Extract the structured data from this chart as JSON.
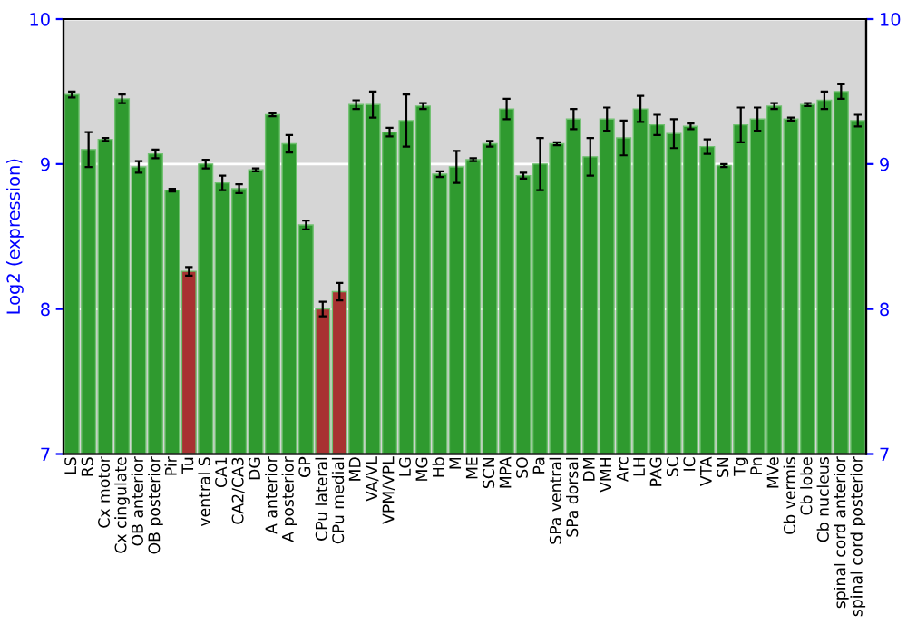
{
  "chart_data": {
    "type": "bar",
    "ylabel": "Log2 (expression)",
    "categories": [
      "LS",
      "RS",
      "Cx motor",
      "Cx cingulate",
      "OB anterior",
      "OB posterior",
      "Pir",
      "Tu",
      "ventral S",
      "CA1",
      "CA2/CA3",
      "DG",
      "A anterior",
      "A posterior",
      "GP",
      "CPu lateral",
      "CPu medial",
      "MD",
      "VA/VL",
      "VPM/VPL",
      "LG",
      "MG",
      "Hb",
      "M",
      "ME",
      "SCN",
      "MPA",
      "SO",
      "Pa",
      "SPa ventral",
      "SPa dorsal",
      "DM",
      "VMH",
      "Arc",
      "LH",
      "PAG",
      "SC",
      "IC",
      "VTA",
      "SN",
      "Tg",
      "Pn",
      "MVe",
      "Cb vermis",
      "Cb lobe",
      "Cb nucleus",
      "spinal cord anterior",
      "spinal cord posterior"
    ],
    "values": [
      9.48,
      9.1,
      9.17,
      9.45,
      8.98,
      9.07,
      8.82,
      8.26,
      9.0,
      8.87,
      8.83,
      8.96,
      9.34,
      9.14,
      8.58,
      8.0,
      8.12,
      9.41,
      9.41,
      9.22,
      9.3,
      9.4,
      8.93,
      8.98,
      9.03,
      9.14,
      9.38,
      8.92,
      9.0,
      9.14,
      9.31,
      9.05,
      9.31,
      9.18,
      9.38,
      9.27,
      9.21,
      9.26,
      9.12,
      8.99,
      9.27,
      9.31,
      9.4,
      9.31,
      9.41,
      9.44,
      9.5,
      9.3
    ],
    "errors": [
      0.02,
      0.12,
      0.01,
      0.03,
      0.04,
      0.03,
      0.01,
      0.03,
      0.03,
      0.05,
      0.03,
      0.01,
      0.01,
      0.06,
      0.03,
      0.05,
      0.06,
      0.03,
      0.09,
      0.03,
      0.18,
      0.02,
      0.02,
      0.11,
      0.01,
      0.02,
      0.07,
      0.02,
      0.18,
      0.01,
      0.07,
      0.13,
      0.08,
      0.12,
      0.09,
      0.07,
      0.1,
      0.02,
      0.05,
      0.01,
      0.12,
      0.08,
      0.02,
      0.01,
      0.01,
      0.06,
      0.05,
      0.04
    ],
    "colors": [
      "#2f9a2f",
      "#2f9a2f",
      "#2f9a2f",
      "#2f9a2f",
      "#2f9a2f",
      "#2f9a2f",
      "#2f9a2f",
      "#a83232",
      "#2f9a2f",
      "#2f9a2f",
      "#2f9a2f",
      "#2f9a2f",
      "#2f9a2f",
      "#2f9a2f",
      "#2f9a2f",
      "#a83232",
      "#a83232",
      "#2f9a2f",
      "#2f9a2f",
      "#2f9a2f",
      "#2f9a2f",
      "#2f9a2f",
      "#2f9a2f",
      "#2f9a2f",
      "#2f9a2f",
      "#2f9a2f",
      "#2f9a2f",
      "#2f9a2f",
      "#2f9a2f",
      "#2f9a2f",
      "#2f9a2f",
      "#2f9a2f",
      "#2f9a2f",
      "#2f9a2f",
      "#2f9a2f",
      "#2f9a2f",
      "#2f9a2f",
      "#2f9a2f",
      "#2f9a2f",
      "#2f9a2f",
      "#2f9a2f",
      "#2f9a2f",
      "#2f9a2f",
      "#2f9a2f",
      "#2f9a2f",
      "#2f9a2f",
      "#2f9a2f",
      "#2f9a2f"
    ],
    "ylim": [
      7,
      10
    ],
    "yticks": [
      7,
      8,
      9,
      10
    ],
    "y2lim": [
      7,
      10
    ],
    "y2ticks": [
      7,
      8,
      9,
      10
    ],
    "grid": "y"
  }
}
